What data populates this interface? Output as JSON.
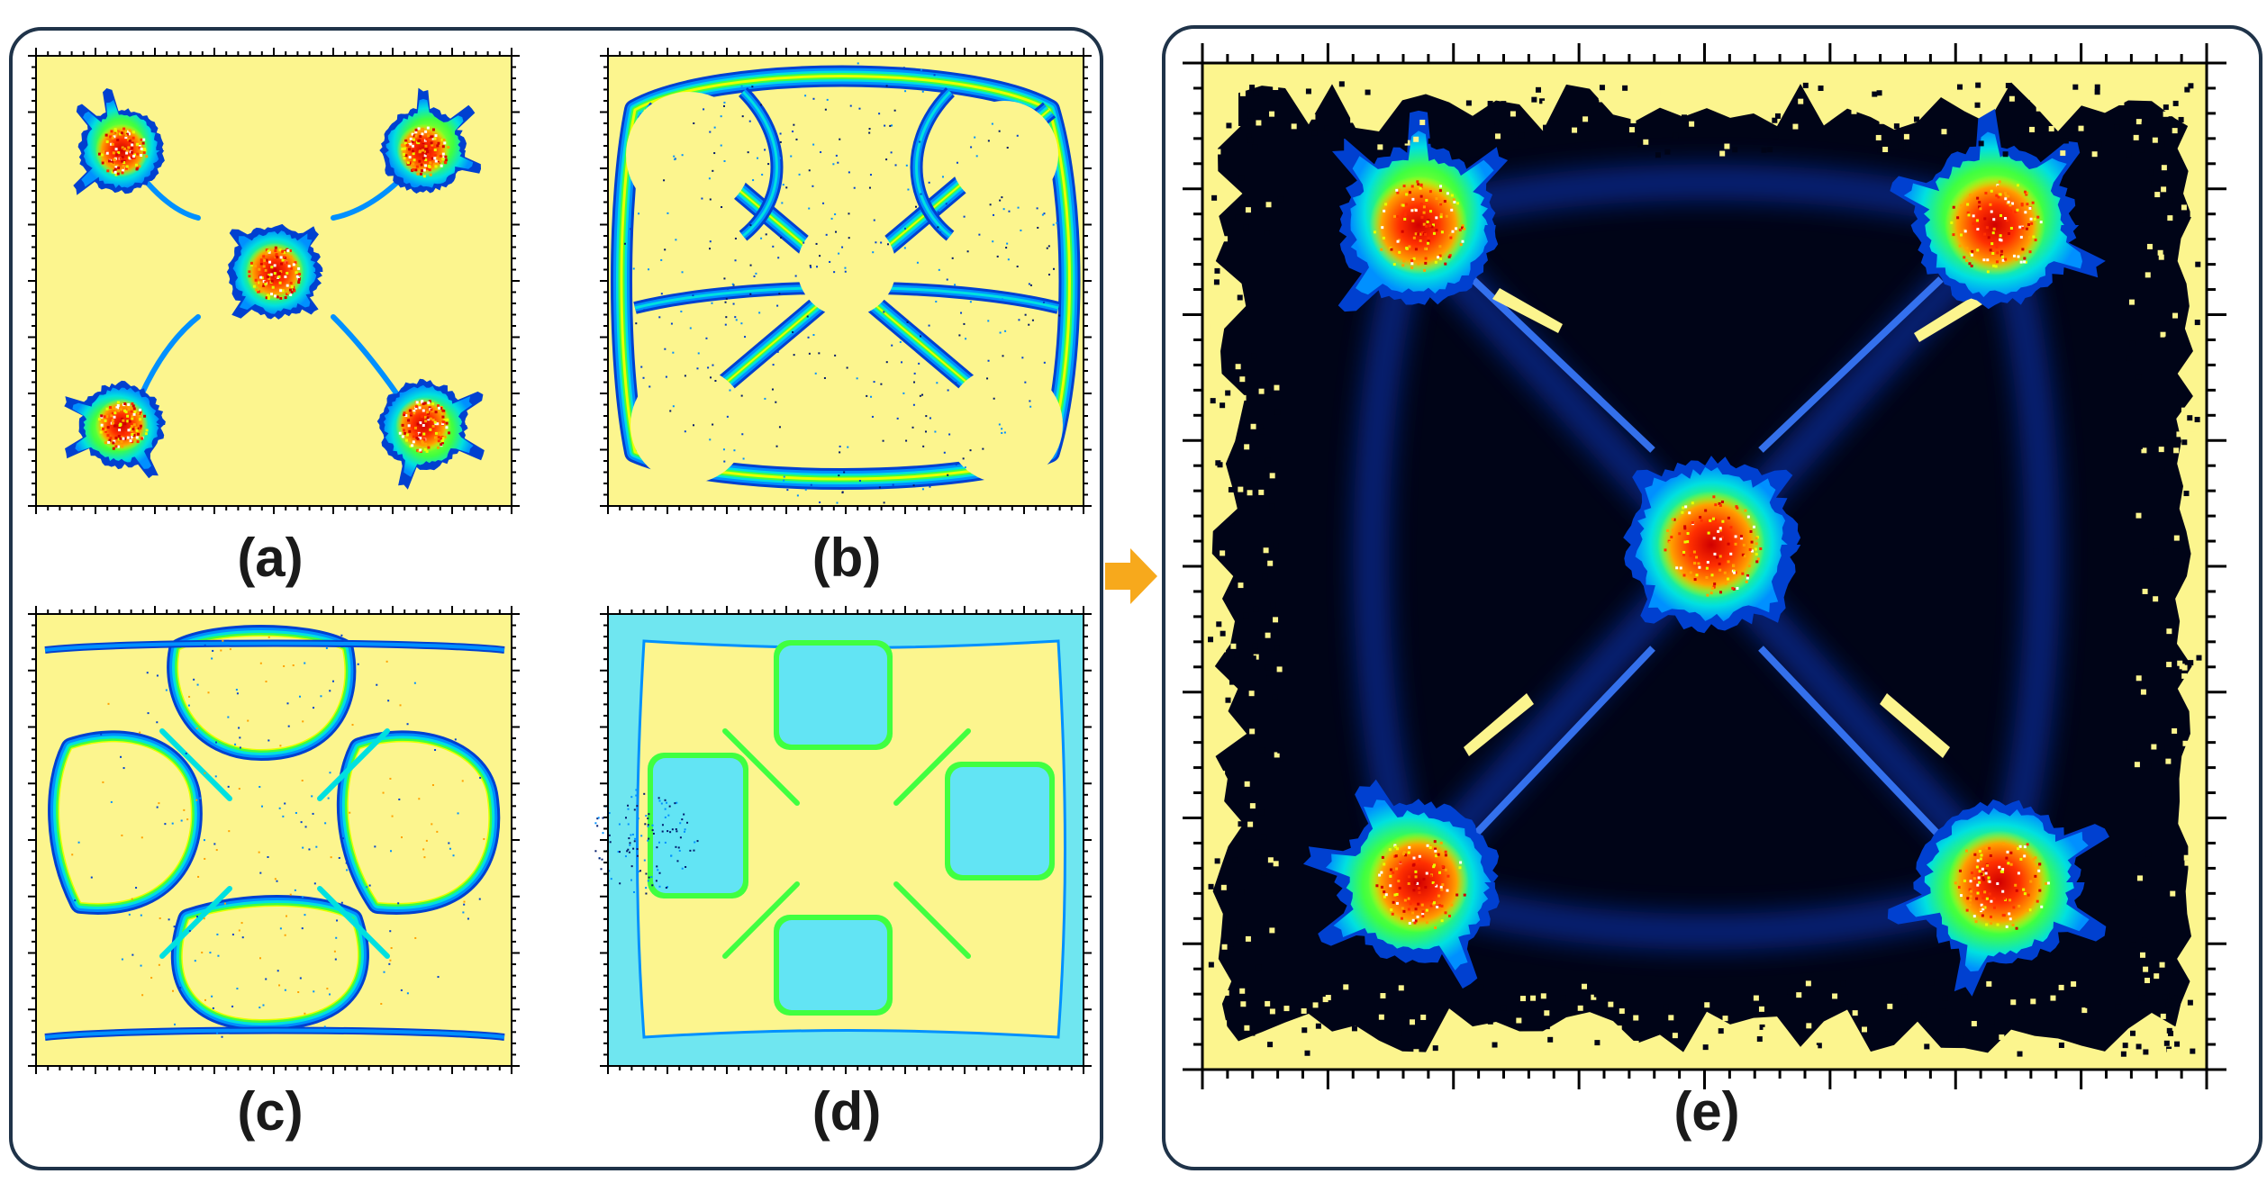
{
  "panels": [
    {
      "id": "a",
      "label": "(a)",
      "pattern": "blobs-connected"
    },
    {
      "id": "b",
      "label": "(b)",
      "pattern": "rings-network"
    },
    {
      "id": "c",
      "label": "(c)",
      "pattern": "square-rings"
    },
    {
      "id": "d",
      "label": "(d)",
      "pattern": "filled-regions"
    },
    {
      "id": "e",
      "label": "(e)",
      "pattern": "full-map"
    }
  ],
  "arrow": {
    "color": "#f7a91c",
    "icon": "right-arrow-icon"
  },
  "colors": {
    "background": "#fcf58e",
    "frame": "#1f3349",
    "dark": "#000417",
    "scale": [
      "#00186b",
      "#0040d0",
      "#0090ff",
      "#00e0e0",
      "#40ff40",
      "#e8ff00",
      "#ffa000",
      "#ff3000",
      "#d00000"
    ]
  }
}
